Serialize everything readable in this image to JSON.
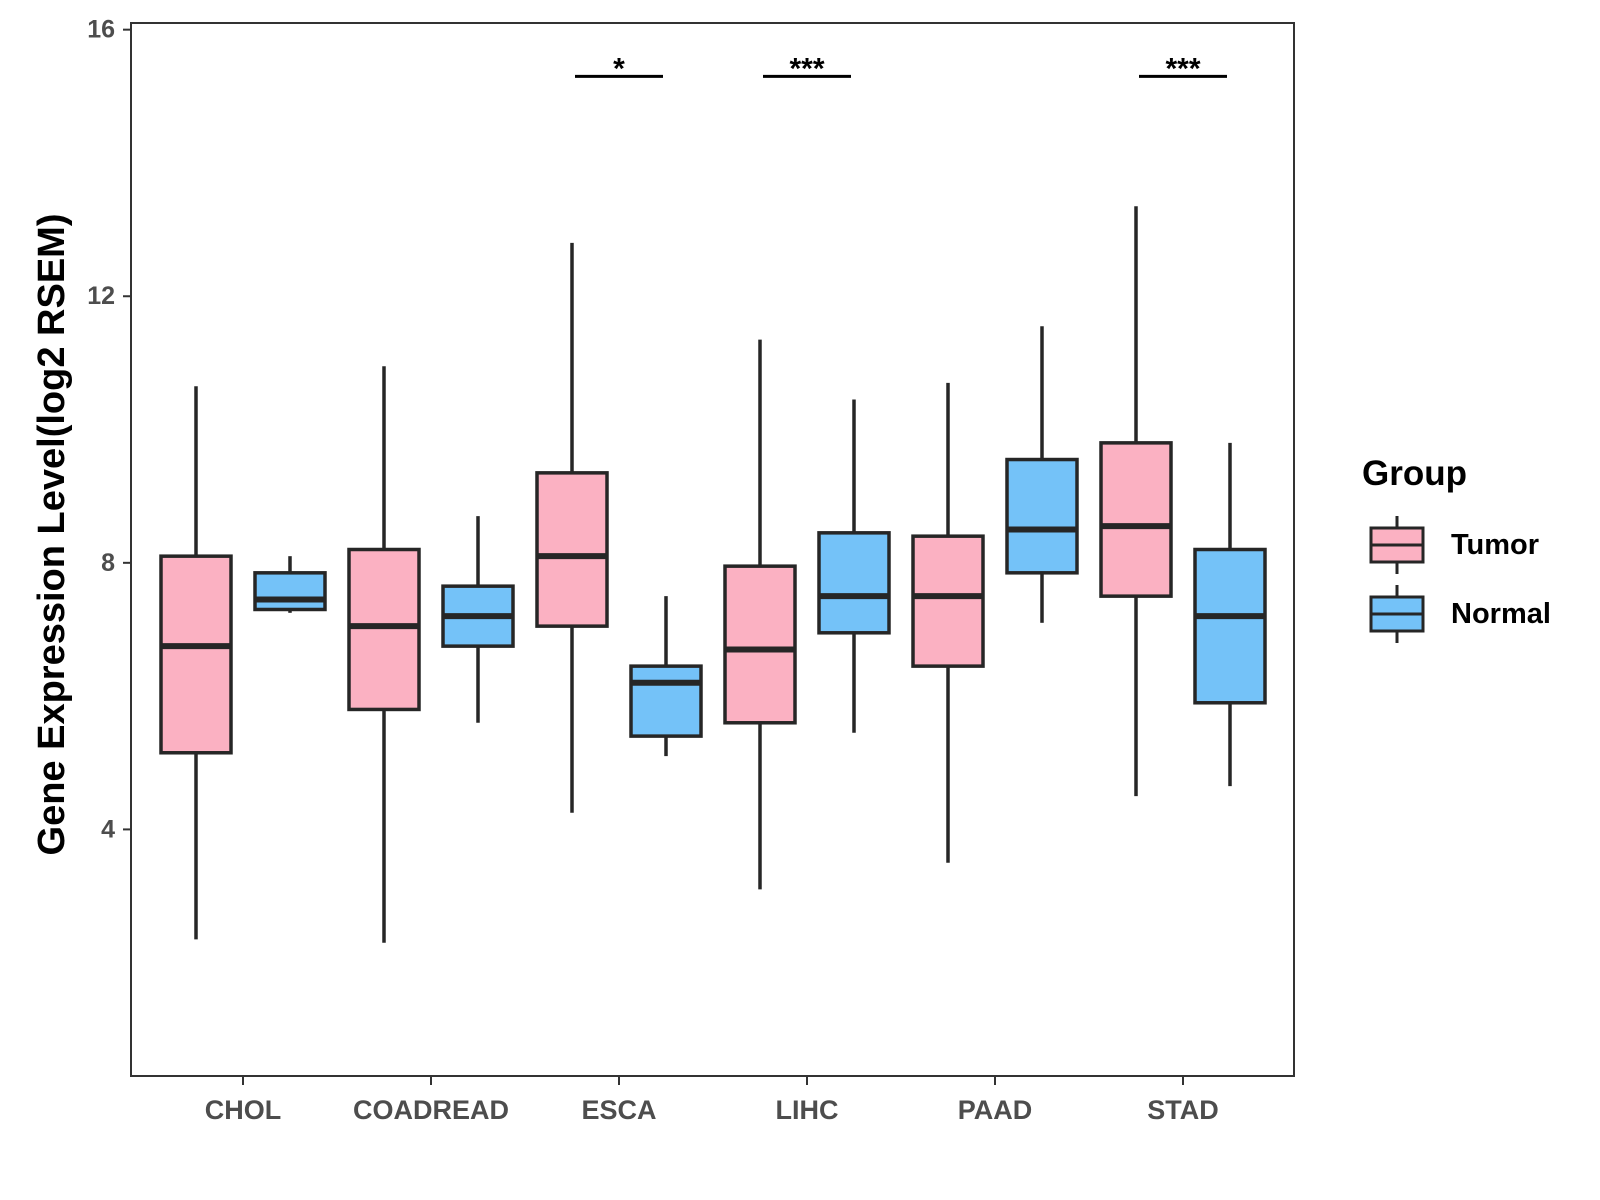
{
  "chart_data": {
    "type": "boxplot",
    "title": "",
    "xlabel": "",
    "ylabel": "Gene Expression Level(log2 RSEM)",
    "ylim": [
      0.3,
      16.1
    ],
    "yticks": [
      4,
      8,
      12,
      16
    ],
    "grid": false,
    "categories": [
      "CHOL",
      "COADREAD",
      "ESCA",
      "LIHC",
      "PAAD",
      "STAD"
    ],
    "legend": {
      "title": "Group",
      "position": "right",
      "entries": [
        "Tumor",
        "Normal"
      ]
    },
    "colors": {
      "Tumor": "#fbb1c2",
      "Normal": "#74c2f8",
      "outline": "#262626"
    },
    "series": [
      {
        "name": "Tumor",
        "boxes": [
          {
            "category": "CHOL",
            "min": 2.35,
            "q1": 5.15,
            "median": 6.75,
            "q3": 8.1,
            "max": 10.65
          },
          {
            "category": "COADREAD",
            "min": 2.3,
            "q1": 5.8,
            "median": 7.05,
            "q3": 8.2,
            "max": 10.95
          },
          {
            "category": "ESCA",
            "min": 4.25,
            "q1": 7.05,
            "median": 8.1,
            "q3": 9.35,
            "max": 12.8
          },
          {
            "category": "LIHC",
            "min": 3.1,
            "q1": 5.6,
            "median": 6.7,
            "q3": 7.95,
            "max": 11.35
          },
          {
            "category": "PAAD",
            "min": 3.5,
            "q1": 6.45,
            "median": 7.5,
            "q3": 8.4,
            "max": 10.7
          },
          {
            "category": "STAD",
            "min": 4.5,
            "q1": 7.5,
            "median": 8.55,
            "q3": 9.8,
            "max": 13.35
          }
        ]
      },
      {
        "name": "Normal",
        "boxes": [
          {
            "category": "CHOL",
            "min": 7.25,
            "q1": 7.3,
            "median": 7.45,
            "q3": 7.85,
            "max": 8.1
          },
          {
            "category": "COADREAD",
            "min": 5.6,
            "q1": 6.75,
            "median": 7.2,
            "q3": 7.65,
            "max": 8.7
          },
          {
            "category": "ESCA",
            "min": 5.1,
            "q1": 5.4,
            "median": 6.2,
            "q3": 6.45,
            "max": 7.5
          },
          {
            "category": "LIHC",
            "min": 5.45,
            "q1": 6.95,
            "median": 7.5,
            "q3": 8.45,
            "max": 10.45
          },
          {
            "category": "PAAD",
            "min": 7.1,
            "q1": 7.85,
            "median": 8.5,
            "q3": 9.55,
            "max": 11.55
          },
          {
            "category": "STAD",
            "min": 4.65,
            "q1": 5.9,
            "median": 7.2,
            "q3": 8.2,
            "max": 9.8
          }
        ]
      }
    ],
    "annotations": [
      {
        "category": "ESCA",
        "label": "*",
        "y": 15.3
      },
      {
        "category": "LIHC",
        "label": "***",
        "y": 15.3
      },
      {
        "category": "STAD",
        "label": "***",
        "y": 15.3
      }
    ]
  }
}
